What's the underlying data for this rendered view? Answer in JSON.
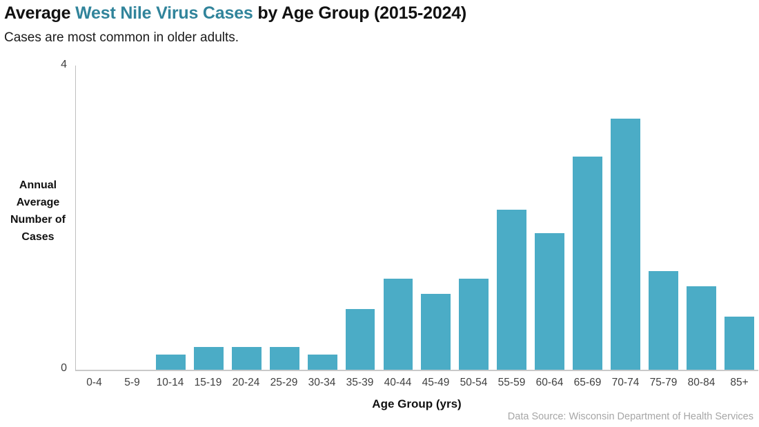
{
  "header": {
    "title_prefix": "Average ",
    "title_highlight": "West Nile Virus Cases",
    "title_suffix": " by Age Group (2015-2024)",
    "subtitle": "Cases are most common in older adults."
  },
  "chart_data": {
    "type": "bar",
    "title": "Average West Nile Virus Cases by Age Group (2015-2024)",
    "subtitle": "Cases are most common in older adults.",
    "categories": [
      "0-4",
      "5-9",
      "10-14",
      "15-19",
      "20-24",
      "25-29",
      "30-34",
      "35-39",
      "40-44",
      "45-49",
      "50-54",
      "55-59",
      "60-64",
      "65-69",
      "70-74",
      "75-79",
      "80-84",
      "85+"
    ],
    "values": [
      0,
      0,
      0.2,
      0.3,
      0.3,
      0.3,
      0.2,
      0.8,
      1.2,
      1.0,
      1.2,
      2.1,
      1.8,
      2.8,
      3.3,
      1.3,
      1.1,
      0.7
    ],
    "xlabel": "Age Group (yrs)",
    "ylabel": "Annual Average Number of Cases",
    "ylabel_lines": [
      "Annual",
      "Average",
      "Number of",
      "Cases"
    ],
    "ylim": [
      0,
      4
    ],
    "yticks": [
      0,
      4
    ],
    "grid": false,
    "legend": null,
    "bar_color": "#4BACC6"
  },
  "colors": {
    "title_highlight": "#31849B",
    "bar": "#4BACC6",
    "axis_line": "#BFBFBF",
    "tick_text": "#3F3F3F",
    "source_text": "#A6A6A6"
  },
  "footer": {
    "source": "Data Source: Wisconsin Department of Health Services"
  }
}
